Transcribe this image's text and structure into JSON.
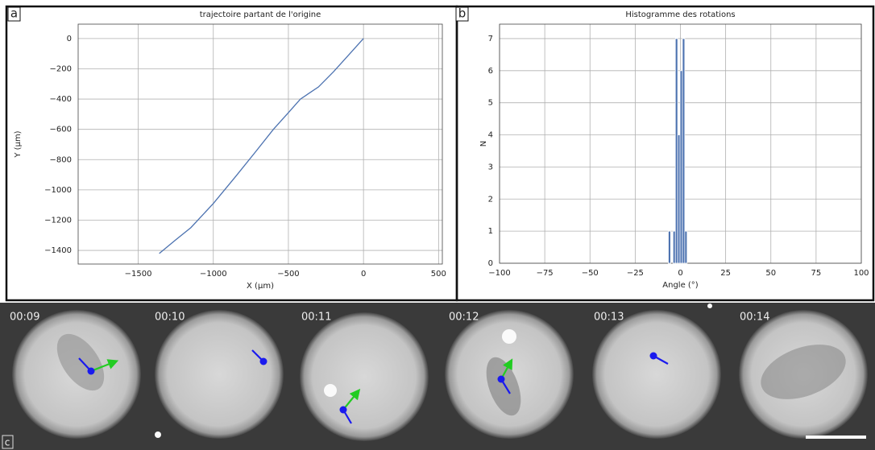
{
  "chart_data": [
    {
      "type": "line",
      "panel": "a",
      "title": "trajectoire partant de l'origine",
      "xlabel": "X (µm)",
      "ylabel": "Y (µm)",
      "x": [
        0,
        -100,
        -200,
        -300,
        -420,
        -500,
        -600,
        -720,
        -850,
        -1000,
        -1150,
        -1250,
        -1360
      ],
      "values": [
        0,
        -110,
        -220,
        -320,
        -400,
        -490,
        -600,
        -750,
        -910,
        -1090,
        -1250,
        -1330,
        -1420
      ],
      "color": "#4c72b0",
      "grid": true,
      "xlim": [
        -1900,
        525
      ],
      "ylim": [
        -1490,
        95
      ],
      "xticks": [
        {
          "value": -1500,
          "label": "−1500"
        },
        {
          "value": -1000,
          "label": "−1000"
        },
        {
          "value": -500,
          "label": "−500"
        },
        0,
        500
      ],
      "yticks": [
        0,
        {
          "value": -200,
          "label": "−200"
        },
        {
          "value": -400,
          "label": "−400"
        },
        {
          "value": -600,
          "label": "−600"
        },
        {
          "value": -800,
          "label": "−800"
        },
        {
          "value": -1000,
          "label": "−1000"
        },
        {
          "value": -1200,
          "label": "−1200"
        },
        {
          "value": -1400,
          "label": "−1400"
        }
      ]
    },
    {
      "type": "histogram",
      "panel": "b",
      "title": "Histogramme des rotations",
      "xlabel": "Angle (°)",
      "ylabel": "N",
      "bins": [
        -6.7,
        -5.4,
        -4.1,
        -2.8,
        -1.5,
        -0.2,
        1.1,
        2.4,
        3.7
      ],
      "values": [
        1,
        0,
        1,
        7,
        4,
        6,
        7,
        1
      ],
      "color": "#4c72b0",
      "grid": true,
      "xlim": [
        -100,
        100
      ],
      "ylim": [
        0,
        7.45
      ],
      "xticks": [
        {
          "value": -100,
          "label": "−100"
        },
        {
          "value": -75,
          "label": "−75"
        },
        {
          "value": -50,
          "label": "−50"
        },
        {
          "value": -25,
          "label": "−25"
        },
        0,
        25,
        50,
        75,
        100
      ],
      "yticks": [
        0,
        1,
        2,
        3,
        4,
        5,
        6,
        7
      ]
    }
  ],
  "images": {
    "panel": "c",
    "timestamps": [
      "00:09",
      "00:10",
      "00:11",
      "00:12",
      "00:13",
      "00:14"
    ]
  }
}
